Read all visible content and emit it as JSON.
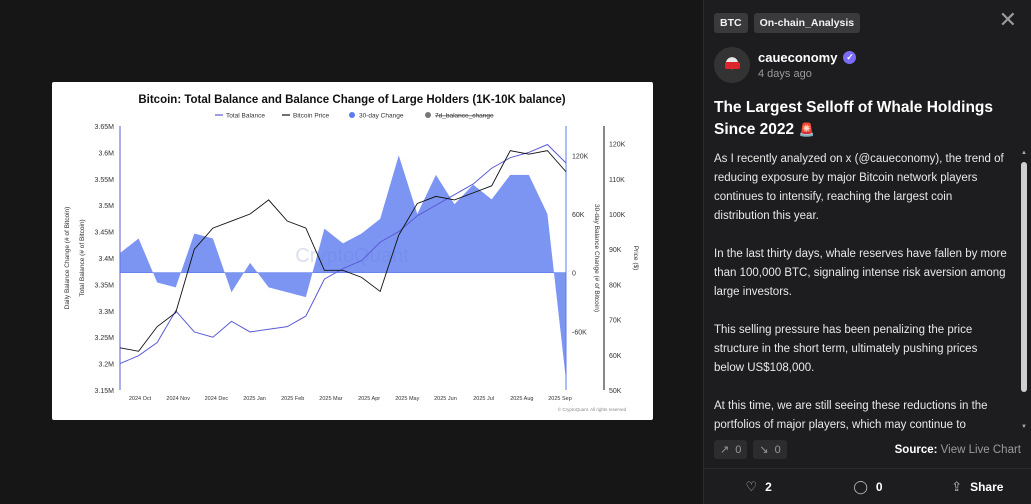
{
  "tags": [
    "BTC",
    "On-chain_Analysis"
  ],
  "author": {
    "name": "caueconomy",
    "time": "4 days ago"
  },
  "post": {
    "title": "The Largest Selloff of Whale Holdings Since 2022",
    "paragraphs": [
      "As I recently analyzed on x (@caueconomy), the trend of reducing exposure by major Bitcoin network players continues to intensify, reaching the largest coin distribution this year.",
      "In the last thirty days, whale reserves have fallen by more than 100,000 BTC, signaling intense risk aversion among large investors.",
      "This selling pressure has been penalizing the price structure in the short term, ultimately pushing prices below US$108,000.",
      "At this time, we are still seeing these reductions in the portfolios of major players, which may continue to"
    ]
  },
  "votes": {
    "up": "0",
    "down": "0"
  },
  "source": {
    "label": "Source:",
    "link": "View Live Chart"
  },
  "actions": {
    "likes": "2",
    "comments": "0",
    "share": "Share"
  },
  "icons": [
    "close-icon",
    "verified-icon",
    "siren-icon",
    "trend-up-icon",
    "trend-down-icon",
    "heart-icon",
    "comment-icon",
    "share-icon"
  ],
  "chart_data": {
    "type": "area",
    "title": "Bitcoin: Total Balance and Balance Change of Large Holders (1K-10K balance)",
    "legend": [
      "Total Balance",
      "Bitcoin Price",
      "30-day Change",
      "7d_balance_change"
    ],
    "legend_placement": "top-center",
    "watermark": "CryptoQuant",
    "copyright": "© CryptoQuant. All rights reserved",
    "y_left_label": "Total Balance (# of Bitcoin)",
    "y_left2_label": "Daily Balance Change (# of Bitcoin)",
    "y_right1_label": "30-day Balance Change (# of Bitcoin)",
    "y_right2_label": "Price ($)",
    "y_left_ticks": [
      "3.65M",
      "3.6M",
      "3.55M",
      "3.5M",
      "3.45M",
      "3.4M",
      "3.35M",
      "3.3M",
      "3.25M",
      "3.2M",
      "3.15M"
    ],
    "y_right1_ticks": [
      "120K",
      "60K",
      "0",
      "-60K"
    ],
    "y_right2_ticks": [
      "120K",
      "110K",
      "100K",
      "90K",
      "80K",
      "70K",
      "60K",
      "50K"
    ],
    "x_ticks": [
      "2024 Oct",
      "2024 Nov",
      "2024 Dec",
      "2025 Jan",
      "2025 Feb",
      "2025 Mar",
      "2025 Apr",
      "2025 May",
      "2025 Jun",
      "2025 Jul",
      "2025 Aug",
      "2025 Sep"
    ],
    "series": [
      {
        "name": "Total Balance",
        "color": "#5b5bd6",
        "values": [
          3.2,
          3.215,
          3.24,
          3.3,
          3.26,
          3.25,
          3.28,
          3.26,
          3.265,
          3.27,
          3.29,
          3.36,
          3.38,
          3.395,
          3.43,
          3.45,
          3.48,
          3.5,
          3.52,
          3.54,
          3.57,
          3.59,
          3.6,
          3.615,
          3.58
        ]
      },
      {
        "name": "Bitcoin Price",
        "color": "#111111",
        "values": [
          62,
          61,
          68,
          72,
          90,
          96,
          98,
          100,
          104,
          98,
          96,
          84,
          84,
          82,
          78,
          94,
          103,
          105,
          104,
          106,
          108,
          118,
          117,
          118,
          112
        ]
      },
      {
        "name": "30-day Change",
        "color": "#5b7bef",
        "values": [
          20,
          35,
          -10,
          -15,
          40,
          35,
          -20,
          10,
          -15,
          -20,
          -25,
          45,
          30,
          40,
          55,
          120,
          60,
          100,
          70,
          90,
          75,
          100,
          100,
          60,
          -110
        ]
      }
    ]
  }
}
